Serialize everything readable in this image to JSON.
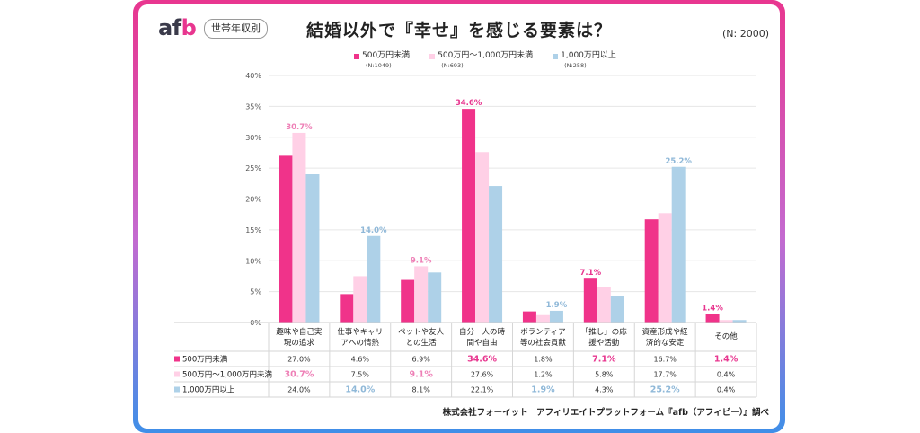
{
  "header": {
    "logo_text": "afb",
    "segment_label": "世帯年収別",
    "title": "結婚以外で『幸せ』を感じる要素は？",
    "sample_size": "(N: 2000)"
  },
  "legend": [
    {
      "label": "500万円未満",
      "n": "(N:1049)",
      "color": "#f0338a"
    },
    {
      "label": "500万円〜1,000万円未満",
      "n": "(N:693)",
      "color": "#ffd0e6"
    },
    {
      "label": "1,000万円以上",
      "n": "(N:258)",
      "color": "#aed1e8"
    }
  ],
  "footer": "株式会社フォーイット　アフィリエイトプラットフォーム『afb（アフィビー）』調べ",
  "chart_data": {
    "type": "bar",
    "categories": [
      [
        "趣味や自己実",
        "現の追求"
      ],
      [
        "仕事やキャリ",
        "アへの情熱"
      ],
      [
        "ペットや友人",
        "との生活"
      ],
      [
        "自分一人の時",
        "間や自由"
      ],
      [
        "ボランティア",
        "等の社会貢献"
      ],
      [
        "「推し」の応",
        "援や活動"
      ],
      [
        "資産形成や経",
        "済的な安定"
      ],
      [
        "その他"
      ]
    ],
    "series": [
      {
        "name": "500万円未満",
        "color": "#f0338a",
        "values": [
          27.0,
          4.6,
          6.9,
          34.6,
          1.8,
          7.1,
          16.7,
          1.4
        ]
      },
      {
        "name": "500万円〜1,000万円未満",
        "color": "#ffd0e6",
        "values": [
          30.7,
          7.5,
          9.1,
          27.6,
          1.2,
          5.8,
          17.7,
          0.4
        ]
      },
      {
        "name": "1,000万円以上",
        "color": "#aed1e8",
        "values": [
          24.0,
          14.0,
          8.1,
          22.1,
          1.9,
          4.3,
          25.2,
          0.4
        ]
      }
    ],
    "table_labels": [
      "27.0%",
      "4.6%",
      "6.9%",
      "34.6%",
      "1.8%",
      "7.1%",
      "16.7%",
      "1.4%",
      "30.7%",
      "7.5%",
      "9.1%",
      "27.6%",
      "1.2%",
      "5.8%",
      "17.7%",
      "0.4%",
      "24.0%",
      "14.0%",
      "8.1%",
      "22.1%",
      "1.9%",
      "4.3%",
      "25.2%",
      "0.4%"
    ],
    "highlights": [
      [
        0,
        3
      ],
      [
        0,
        5
      ],
      [
        0,
        7
      ],
      [
        1,
        0
      ],
      [
        1,
        2
      ],
      [
        2,
        1
      ],
      [
        2,
        4
      ],
      [
        2,
        6
      ]
    ],
    "highlight_labels": [
      "34.6%",
      "7.1%",
      "1.4%",
      "30.7%",
      "9.1%",
      "14.0%",
      "1.9%",
      "25.2%"
    ],
    "highlight_colors": [
      "#e8368f",
      "#ee7fb6",
      "#8fb8d8"
    ],
    "ylim": [
      0,
      40
    ],
    "yticks": [
      "0%",
      "5%",
      "10%",
      "15%",
      "20%",
      "25%",
      "30%",
      "35%",
      "40%"
    ],
    "grid": true
  }
}
